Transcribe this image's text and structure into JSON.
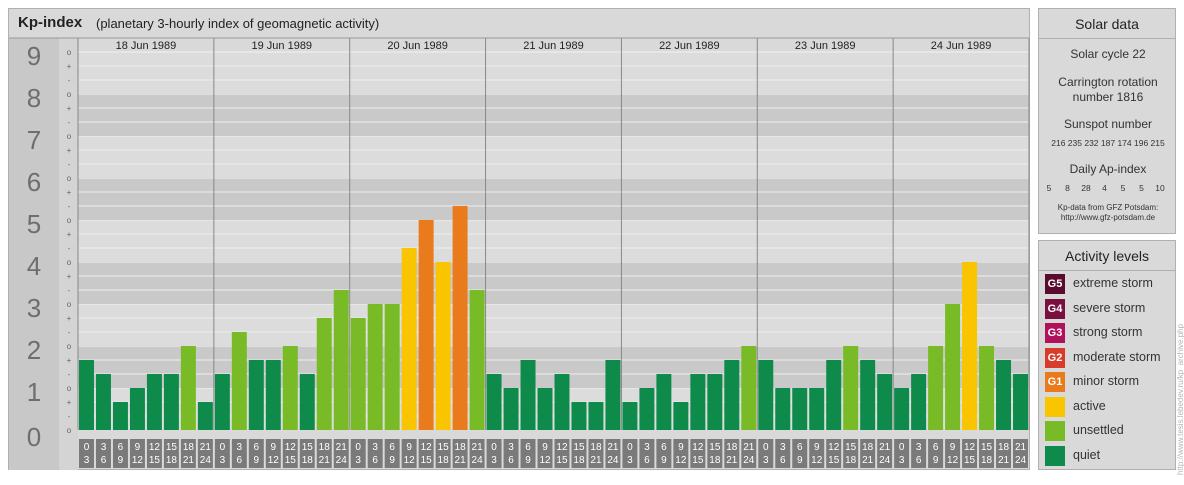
{
  "header": {
    "title": "Kp-index",
    "subtitle": "(planetary 3-hourly index of geomagnetic activity)"
  },
  "chart_data": {
    "type": "bar",
    "ylim": [
      0,
      9
    ],
    "y_ticks": [
      "0",
      "1",
      "2",
      "3",
      "4",
      "5",
      "6",
      "7",
      "8",
      "9"
    ],
    "minor_tick_marks": [
      "+",
      "o",
      "-"
    ],
    "days": [
      "18 Jun 1989",
      "19 Jun 1989",
      "20 Jun 1989",
      "21 Jun 1989",
      "22 Jun 1989",
      "23 Jun 1989",
      "24 Jun 1989"
    ],
    "interval_labels": [
      [
        "0",
        "3"
      ],
      [
        "3",
        "6"
      ],
      [
        "6",
        "9"
      ],
      [
        "9",
        "12"
      ],
      [
        "12",
        "15"
      ],
      [
        "15",
        "18"
      ],
      [
        "18",
        "21"
      ],
      [
        "21",
        "24"
      ]
    ],
    "values": [
      [
        1.667,
        1.333,
        0.667,
        1.0,
        1.333,
        1.333,
        2.0,
        0.667
      ],
      [
        1.333,
        2.333,
        1.667,
        1.667,
        2.0,
        1.333,
        2.667,
        3.333
      ],
      [
        2.667,
        3.0,
        3.0,
        4.333,
        5.0,
        4.0,
        5.333,
        3.333
      ],
      [
        1.333,
        1.0,
        1.667,
        1.0,
        1.333,
        0.667,
        0.667,
        1.667
      ],
      [
        0.667,
        1.0,
        1.333,
        0.667,
        1.333,
        1.333,
        1.667,
        2.0
      ],
      [
        1.667,
        1.0,
        1.0,
        1.0,
        1.667,
        2.0,
        1.667,
        1.333
      ],
      [
        1.0,
        1.333,
        2.0,
        3.0,
        4.0,
        2.0,
        1.667,
        1.333
      ]
    ],
    "colors": {
      "quiet": "#0e8b4a",
      "unsettled": "#78bb27",
      "active": "#f8c500",
      "G1": "#e97b1c"
    }
  },
  "solar": {
    "title": "Solar data",
    "cycle": "Solar cycle 22",
    "carrington_1": "Carrington rotation",
    "carrington_2": "number 1816",
    "sunspot_title": "Sunspot number",
    "sunspot_values": "216 235 232 187 174 196 215",
    "ap_title": "Daily Ap-index",
    "ap_values": [
      "5",
      "8",
      "28",
      "4",
      "5",
      "5",
      "10"
    ],
    "source_1": "Kp-data from GFZ Potsdam:",
    "source_2": "http://www.gfz-potsdam.de"
  },
  "activity": {
    "title": "Activity levels",
    "levels": [
      {
        "code": "G5",
        "label": "extreme storm",
        "color": "#5a0a2c"
      },
      {
        "code": "G4",
        "label": "severe storm",
        "color": "#7a1040"
      },
      {
        "code": "G3",
        "label": "strong storm",
        "color": "#b0115a"
      },
      {
        "code": "G2",
        "label": "moderate storm",
        "color": "#d93b2b"
      },
      {
        "code": "G1",
        "label": "minor storm",
        "color": "#e97b1c"
      },
      {
        "code": "",
        "label": "active",
        "color": "#f8c500"
      },
      {
        "code": "",
        "label": "unsettled",
        "color": "#78bb27"
      },
      {
        "code": "",
        "label": "quiet",
        "color": "#0e8b4a"
      }
    ]
  },
  "credit": "http://www.tesis.lebedev.ru/kp_archive.php"
}
